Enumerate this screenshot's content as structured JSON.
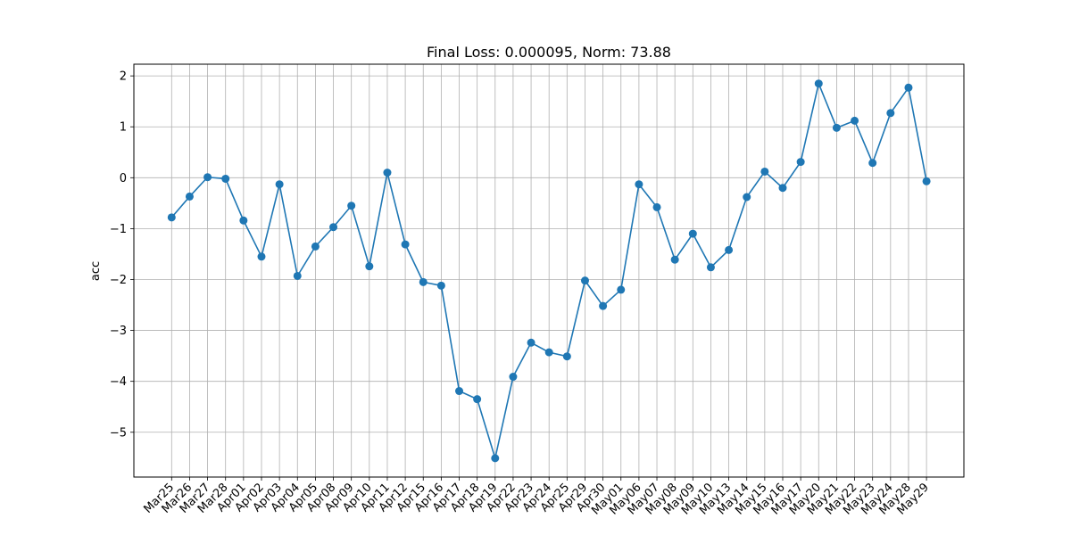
{
  "chart_data": {
    "type": "line",
    "title": "Final Loss: 0.000095, Norm: 73.88",
    "xlabel": "",
    "ylabel": "acc",
    "categories": [
      "Mar25",
      "Mar26",
      "Mar27",
      "Mar28",
      "Apr01",
      "Apr02",
      "Apr03",
      "Apr04",
      "Apr05",
      "Apr08",
      "Apr09",
      "Apr10",
      "Apr11",
      "Apr12",
      "Apr15",
      "Apr16",
      "Apr17",
      "Apr18",
      "Apr19",
      "Apr22",
      "Apr23",
      "Apr24",
      "Apr25",
      "Apr29",
      "Apr30",
      "May01",
      "May06",
      "May07",
      "May08",
      "May09",
      "May10",
      "May13",
      "May14",
      "May15",
      "May16",
      "May17",
      "May20",
      "May21",
      "May22",
      "May23",
      "May24",
      "May28",
      "May29"
    ],
    "values": [
      -0.78,
      -0.37,
      0.01,
      -0.02,
      -0.84,
      -1.55,
      -0.13,
      -1.93,
      -1.35,
      -0.97,
      -0.55,
      -1.74,
      0.1,
      -1.31,
      -2.05,
      -2.12,
      -4.19,
      -4.35,
      -5.51,
      -3.91,
      -3.24,
      -3.43,
      -3.51,
      -2.02,
      -2.52,
      -2.2,
      -0.13,
      -0.58,
      -1.61,
      -1.1,
      -1.76,
      -1.42,
      -0.38,
      0.12,
      -0.2,
      0.31,
      1.85,
      0.98,
      1.12,
      0.29,
      1.27,
      1.77,
      -0.07
    ],
    "yticks": [
      "2",
      "1",
      "0",
      "−1",
      "−2",
      "−3",
      "−4",
      "−5"
    ],
    "ytick_values": [
      2,
      1,
      0,
      -1,
      -2,
      -3,
      -4,
      -5
    ],
    "ylim": [
      -5.88,
      2.23
    ],
    "grid": true,
    "color": "#1f77b4"
  }
}
